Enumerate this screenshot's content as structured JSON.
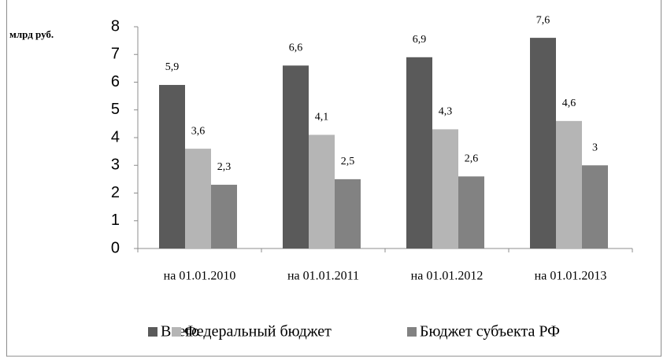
{
  "chart_data": {
    "type": "bar",
    "ylabel": "млрд руб.",
    "categories": [
      "на 01.01.2010",
      "на 01.01.2011",
      "на 01.01.2012",
      "на 01.01.2013"
    ],
    "series": [
      {
        "name": "Всего",
        "color": "#5a5a5a",
        "values": [
          5.9,
          6.6,
          6.9,
          7.6
        ],
        "value_labels": [
          "5,9",
          "6,6",
          "6,9",
          "7,6"
        ]
      },
      {
        "name": "Федеральный бюджет",
        "color": "#b5b5b5",
        "values": [
          3.6,
          4.1,
          4.3,
          4.6
        ],
        "value_labels": [
          "3,6",
          "4,1",
          "4,3",
          "4,6"
        ]
      },
      {
        "name": "Бюджет субъекта РФ",
        "color": "#828282",
        "values": [
          2.3,
          2.5,
          2.6,
          3
        ],
        "value_labels": [
          "2,3",
          "2,5",
          "2,6",
          "3"
        ]
      }
    ],
    "ylim": [
      0,
      8
    ],
    "yticks": [
      0,
      1,
      2,
      3,
      4,
      5,
      6,
      7,
      8
    ],
    "grid": false,
    "legend": "bottom"
  }
}
